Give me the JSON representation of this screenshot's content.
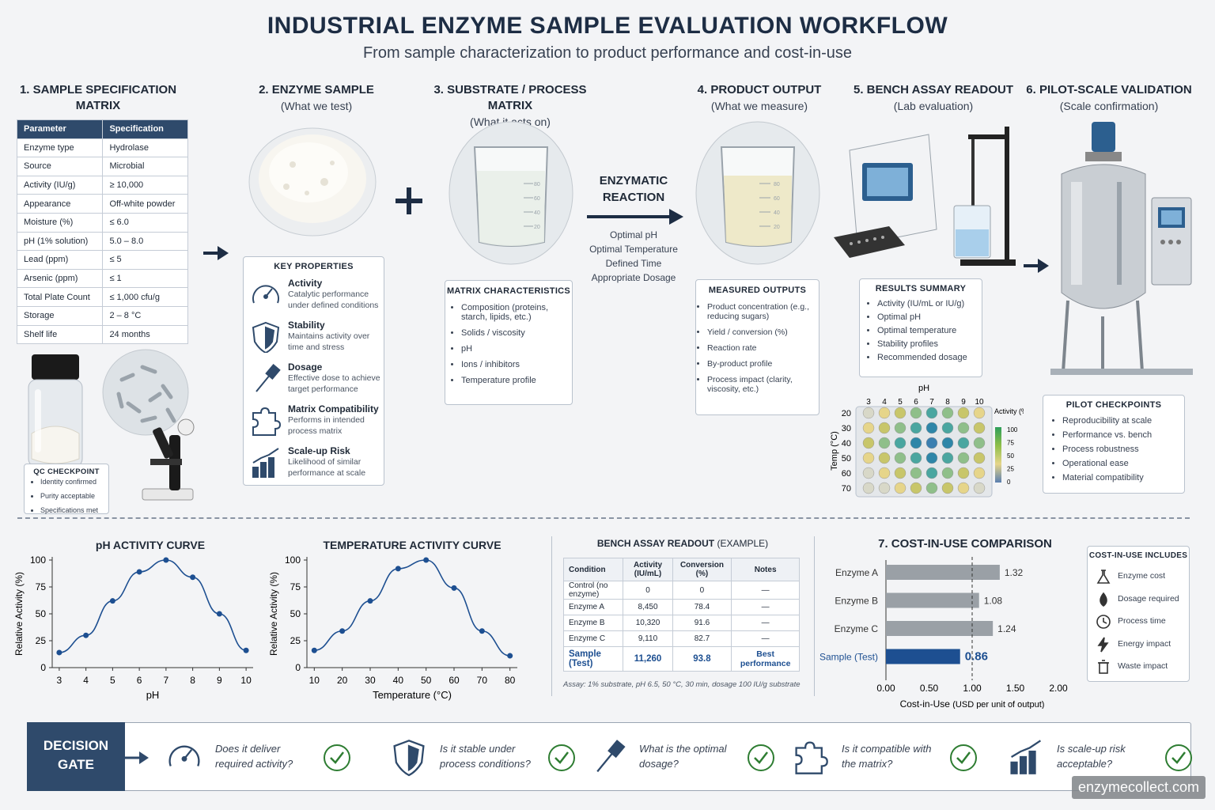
{
  "header": {
    "title": "INDUSTRIAL ENZYME SAMPLE EVALUATION WORKFLOW",
    "subtitle": "From sample characterization to product performance and cost-in-use"
  },
  "steps": {
    "s1": {
      "title": "1. SAMPLE SPECIFICATION",
      "title2": "MATRIX"
    },
    "s2": {
      "title": "2.  ENZYME SAMPLE",
      "sub": "(What we test)"
    },
    "s3": {
      "title": "3. SUBSTRATE / PROCESS MATRIX",
      "sub": "(What it acts on)"
    },
    "s4": {
      "title": "4.  PRODUCT OUTPUT",
      "sub": "(What we measure)"
    },
    "s5": {
      "title": "5.  BENCH ASSAY READOUT",
      "sub": "(Lab evaluation)"
    },
    "s6": {
      "title": "6.  PILOT-SCALE VALIDATION",
      "sub": "(Scale confirmation)"
    }
  },
  "spec_table": {
    "headers": [
      "Parameter",
      "Specification"
    ],
    "rows": [
      [
        "Enzyme type",
        "Hydrolase"
      ],
      [
        "Source",
        "Microbial"
      ],
      [
        "Activity (IU/g)",
        "≥ 10,000"
      ],
      [
        "Appearance",
        "Off-white powder"
      ],
      [
        "Moisture (%)",
        "≤ 6.0"
      ],
      [
        "pH (1% solution)",
        "5.0 – 8.0"
      ],
      [
        "Lead (ppm)",
        "≤ 5"
      ],
      [
        "Arsenic (ppm)",
        "≤ 1"
      ],
      [
        "Total Plate Count",
        "≤ 1,000 cfu/g"
      ],
      [
        "Storage",
        "2 – 8 °C"
      ],
      [
        "Shelf life",
        "24  months"
      ]
    ]
  },
  "qc": {
    "title": "QC CHECKPOINT",
    "items": [
      "Identity confirmed",
      "Purity acceptable",
      "Specifications met"
    ]
  },
  "key_props": {
    "title": "KEY PROPERTIES",
    "items": [
      {
        "name": "Activity",
        "desc": "Catalytic performance under defined conditions",
        "icon": "gauge-icon"
      },
      {
        "name": "Stability",
        "desc": "Maintains activity over time and stress",
        "icon": "shield-icon"
      },
      {
        "name": "Dosage",
        "desc": "Effective dose to achieve target performance",
        "icon": "dropper-icon"
      },
      {
        "name": "Matrix Compatibility",
        "desc": "Performs in intended process matrix",
        "icon": "puzzle-icon"
      },
      {
        "name": "Scale-up Risk",
        "desc": "Likelihood of similar performance at scale",
        "icon": "bar-chart-icon"
      }
    ]
  },
  "matrix": {
    "title": "MATRIX CHARACTERISTICS",
    "items": [
      "Composition (proteins, starch, lipids, etc.)",
      "Solids / viscosity",
      "pH",
      "Ions / inhibitors",
      "Temperature profile"
    ]
  },
  "reaction": {
    "title": "ENZYMATIC REACTION",
    "conditions": [
      "Optimal pH",
      "Optimal Temperature",
      "Defined Time",
      "Appropriate Dosage"
    ]
  },
  "outputs": {
    "title": "MEASURED OUTPUTS",
    "items": [
      "Product concentration (e.g., reducing sugars)",
      "Yield / conversion (%)",
      "Reaction rate",
      "By-product profile",
      "Process impact (clarity, viscosity, etc.)"
    ]
  },
  "results": {
    "title": "RESULTS SUMMARY",
    "items": [
      "Activity (IU/mL or IU/g)",
      "Optimal pH",
      "Optimal temperature",
      "Stability profiles",
      "Recommended dosage"
    ]
  },
  "plate": {
    "x_label": "pH",
    "y_label": "Temp (°C)",
    "ph": [
      "3",
      "4",
      "5",
      "6",
      "7",
      "8",
      "9",
      "10"
    ],
    "temp": [
      "20",
      "30",
      "40",
      "50",
      "60",
      "70"
    ],
    "legend_title": "Activity (%)",
    "legend_ticks": [
      "100",
      "75",
      "50",
      "25",
      "0"
    ]
  },
  "pilot": {
    "title": "PILOT CHECKPOINTS",
    "items": [
      "Reproducibility at scale",
      "Performance vs. bench",
      "Process robustness",
      "Operational ease",
      "Material compatibility"
    ]
  },
  "beaker_ticks": [
    "80",
    "60",
    "40",
    "20"
  ],
  "chart_data": [
    {
      "type": "line",
      "title": "pH ACTIVITY CURVE",
      "xlabel": "pH",
      "ylabel": "Relative Activity (%)",
      "x": [
        3,
        4,
        5,
        6,
        7,
        8,
        9,
        10
      ],
      "y": [
        14,
        30,
        62,
        89,
        100,
        84,
        50,
        16
      ],
      "ylim": [
        0,
        100
      ],
      "yticks": [
        0,
        25,
        50,
        75,
        100
      ],
      "color": "#1d4f91"
    },
    {
      "type": "line",
      "title": "TEMPERATURE ACTIVITY CURVE",
      "xlabel": "Temperature (°C)",
      "ylabel": "Relative Activity (%)",
      "x": [
        10,
        20,
        30,
        40,
        50,
        60,
        70,
        80
      ],
      "y": [
        16,
        34,
        62,
        92,
        100,
        74,
        34,
        11
      ],
      "ylim": [
        0,
        100
      ],
      "yticks": [
        0,
        25,
        50,
        75,
        100
      ],
      "color": "#1d4f91"
    },
    {
      "type": "bar",
      "title": "7. COST-IN-USE COMPARISON",
      "xlabel": "Cost-in-Use",
      "xlabel_unit": "(USD per unit of output)",
      "categories": [
        "Enzyme A",
        "Enzyme B",
        "Enzyme C",
        "Sample (Test)"
      ],
      "values": [
        1.32,
        1.08,
        1.24,
        0.86
      ],
      "value_labels": [
        "1.32",
        "1.08",
        "1.24",
        "0.86"
      ],
      "xlim": [
        0,
        2
      ],
      "xticks": [
        "0.00",
        "0.50",
        "1.00",
        "1.50",
        "2.00"
      ],
      "reference_line": 1.0,
      "colors": [
        "#9aa0a6",
        "#9aa0a6",
        "#9aa0a6",
        "#1d4f91"
      ]
    }
  ],
  "assay": {
    "title": "BENCH ASSAY READOUT",
    "title_suffix": "(EXAMPLE)",
    "headers": [
      "Condition",
      "Activity (IU/mL)",
      "Conversion (%)",
      "Notes"
    ],
    "rows": [
      [
        "Control (no enzyme)",
        "0",
        "0",
        "—"
      ],
      [
        "Enzyme A",
        "8,450",
        "78.4",
        "—"
      ],
      [
        "Enzyme B",
        "10,320",
        "91.6",
        "—"
      ],
      [
        "Enzyme C",
        "9,110",
        "82.7",
        "—"
      ]
    ],
    "highlight": [
      "Sample (Test)",
      "11,260",
      "93.8",
      "Best performance"
    ],
    "footnote": "Assay: 1% substrate, pH 6.5, 50 °C, 30 min, dosage 100 IU/g substrate"
  },
  "cost_includes": {
    "title": "COST-IN-USE INCLUDES",
    "items": [
      {
        "label": "Enzyme cost",
        "icon": "flask-icon"
      },
      {
        "label": "Dosage required",
        "icon": "drop-icon"
      },
      {
        "label": "Process time",
        "icon": "clock-icon"
      },
      {
        "label": "Energy impact",
        "icon": "lightning-icon"
      },
      {
        "label": "Waste impact",
        "icon": "trash-icon"
      }
    ]
  },
  "gate": {
    "label1": "DECISION",
    "label2": "GATE",
    "questions": [
      "Does it deliver required activity?",
      "Is it stable under process conditions?",
      "What is the optimal dosage?",
      "Is it compatible with the matrix?",
      "Is scale-up risk acceptable?"
    ]
  },
  "watermark": "enzymecollect.com"
}
